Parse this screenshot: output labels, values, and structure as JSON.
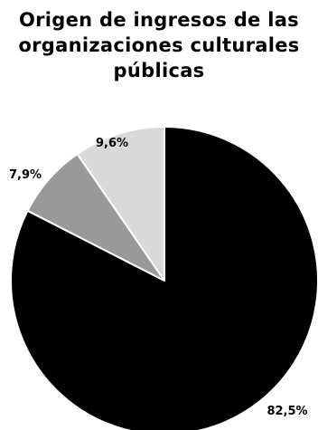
{
  "chart_data": {
    "type": "pie",
    "title_lines": [
      "Origen de ingresos de las",
      "organizaciones culturales",
      "públicas"
    ],
    "slices": [
      {
        "label": "82,5%",
        "value": 82.5,
        "color": "#000000"
      },
      {
        "label": "7,9%",
        "value": 7.9,
        "color": "#999999"
      },
      {
        "label": "9,6%",
        "value": 9.6,
        "color": "#d9d9d9"
      }
    ],
    "start_at": "top",
    "direction": "clockwise"
  }
}
